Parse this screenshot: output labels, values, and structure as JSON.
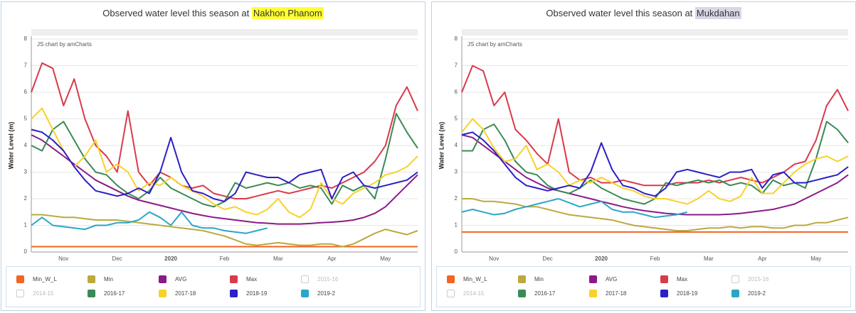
{
  "chart_data": [
    {
      "type": "line",
      "title": "Observed water level this season at",
      "station": "Nakhon Phanom",
      "station_highlight": "#ffff33",
      "y_label": "Water Level (m)",
      "credit": "JS chart by amCharts",
      "categories": [
        null,
        null,
        null,
        "Nov",
        null,
        null,
        null,
        null,
        "Dec",
        null,
        null,
        null,
        null,
        "2020",
        null,
        null,
        null,
        null,
        "Feb",
        null,
        null,
        null,
        null,
        "Mar",
        null,
        null,
        null,
        null,
        "Apr",
        null,
        null,
        null,
        null,
        "May",
        null,
        null,
        null
      ],
      "ylim": [
        0,
        8
      ],
      "yticks": [
        0,
        1,
        2,
        3,
        4,
        5,
        6,
        7,
        8
      ],
      "grid": true,
      "series": [
        {
          "name": "Min_W_L",
          "color": "#f26522",
          "values": [
            0.2,
            0.2,
            0.2,
            0.2,
            0.2,
            0.2,
            0.2,
            0.2,
            0.2,
            0.2,
            0.2,
            0.2,
            0.2,
            0.2,
            0.2,
            0.2,
            0.2,
            0.2,
            0.2,
            0.2,
            0.2,
            0.2,
            0.2,
            0.2,
            0.2,
            0.2,
            0.2,
            0.2,
            0.2,
            0.2,
            0.2,
            0.2,
            0.2,
            0.2,
            0.2,
            0.2,
            0.2
          ]
        },
        {
          "name": "Min",
          "color": "#bca93f",
          "values": [
            1.4,
            1.4,
            1.35,
            1.3,
            1.3,
            1.25,
            1.2,
            1.2,
            1.2,
            1.15,
            1.1,
            1.05,
            1.0,
            0.95,
            0.9,
            0.85,
            0.8,
            0.7,
            0.6,
            0.45,
            0.3,
            0.25,
            0.3,
            0.35,
            0.3,
            0.25,
            0.25,
            0.3,
            0.3,
            0.2,
            0.3,
            0.5,
            0.7,
            0.85,
            0.75,
            0.65,
            0.8
          ]
        },
        {
          "name": "AVG",
          "color": "#8b1a89",
          "values": [
            4.4,
            4.2,
            3.9,
            3.6,
            3.3,
            3.0,
            2.7,
            2.5,
            2.3,
            2.1,
            1.95,
            1.85,
            1.75,
            1.65,
            1.55,
            1.45,
            1.37,
            1.3,
            1.25,
            1.2,
            1.15,
            1.1,
            1.08,
            1.05,
            1.05,
            1.05,
            1.07,
            1.1,
            1.12,
            1.15,
            1.2,
            1.3,
            1.45,
            1.7,
            2.1,
            2.5,
            2.9
          ]
        },
        {
          "name": "Max",
          "color": "#d93a4a",
          "values": [
            6.0,
            7.1,
            6.9,
            5.5,
            6.5,
            5.0,
            4.0,
            3.6,
            3.0,
            5.3,
            3.0,
            2.5,
            3.0,
            2.8,
            2.5,
            2.4,
            2.5,
            2.2,
            2.1,
            2.0,
            2.0,
            2.1,
            2.2,
            2.3,
            2.2,
            2.3,
            2.4,
            2.5,
            2.4,
            2.6,
            2.8,
            3.0,
            3.4,
            4.0,
            5.5,
            6.2,
            5.3
          ]
        },
        {
          "name": "2015-16",
          "color": "#cccccc",
          "hidden": true
        },
        {
          "name": "2014-15",
          "color": "#cccccc",
          "hidden": true
        },
        {
          "name": "2016-17",
          "color": "#3a8a55",
          "values": [
            4.0,
            3.8,
            4.6,
            4.9,
            4.2,
            3.5,
            3.0,
            2.9,
            2.5,
            2.2,
            2.0,
            2.3,
            2.8,
            2.4,
            2.2,
            2.0,
            1.8,
            1.7,
            1.9,
            2.6,
            2.4,
            2.5,
            2.6,
            2.5,
            2.6,
            2.4,
            2.5,
            2.4,
            1.8,
            2.5,
            2.3,
            2.5,
            2.0,
            3.5,
            5.2,
            4.5,
            3.9
          ]
        },
        {
          "name": "2017-18",
          "color": "#f7d22a",
          "values": [
            5.0,
            5.4,
            4.6,
            3.8,
            3.2,
            3.6,
            4.2,
            3.0,
            3.3,
            3.0,
            2.3,
            2.6,
            2.5,
            2.8,
            2.5,
            2.3,
            2.1,
            1.8,
            1.6,
            1.7,
            1.5,
            1.4,
            1.6,
            2.0,
            1.5,
            1.3,
            1.6,
            2.6,
            2.0,
            1.8,
            2.2,
            2.4,
            2.6,
            2.9,
            3.0,
            3.2,
            3.6
          ]
        },
        {
          "name": "2018-19",
          "color": "#2b1fc7",
          "values": [
            4.6,
            4.5,
            4.2,
            3.8,
            3.2,
            2.7,
            2.3,
            2.2,
            2.1,
            2.2,
            2.4,
            2.2,
            3.0,
            4.3,
            3.0,
            2.3,
            2.2,
            2.0,
            1.9,
            2.2,
            3.0,
            2.9,
            2.8,
            2.8,
            2.6,
            2.9,
            3.0,
            3.1,
            2.0,
            2.8,
            3.0,
            2.5,
            2.4,
            2.5,
            2.6,
            2.7,
            3.0
          ]
        },
        {
          "name": "2019-2",
          "color": "#2aa6c7",
          "values": [
            1.0,
            1.3,
            1.0,
            0.95,
            0.9,
            0.85,
            1.0,
            1.0,
            1.1,
            1.1,
            1.2,
            1.5,
            1.3,
            1.0,
            1.5,
            1.0,
            0.9,
            0.9,
            0.8,
            0.75,
            0.7,
            0.8,
            0.9,
            null,
            null,
            null,
            null,
            null,
            null,
            null,
            null,
            null,
            null,
            null,
            null,
            null,
            null
          ]
        }
      ]
    },
    {
      "type": "line",
      "title": "Observed water level this season at",
      "station": "Mukdahan",
      "station_highlight": "#d9d6e6",
      "y_label": "Water Level (m)",
      "credit": "JS chart by amCharts",
      "categories": [
        null,
        null,
        null,
        "Nov",
        null,
        null,
        null,
        null,
        "Dec",
        null,
        null,
        null,
        null,
        "2020",
        null,
        null,
        null,
        null,
        "Feb",
        null,
        null,
        null,
        null,
        "Mar",
        null,
        null,
        null,
        null,
        "Apr",
        null,
        null,
        null,
        null,
        "May",
        null,
        null,
        null
      ],
      "ylim": [
        0,
        8
      ],
      "yticks": [
        0,
        1,
        2,
        3,
        4,
        5,
        6,
        7,
        8
      ],
      "grid": true,
      "series": [
        {
          "name": "Min_W_L",
          "color": "#f26522",
          "values": [
            0.75,
            0.75,
            0.75,
            0.75,
            0.75,
            0.75,
            0.75,
            0.75,
            0.75,
            0.75,
            0.75,
            0.75,
            0.75,
            0.75,
            0.75,
            0.75,
            0.75,
            0.75,
            0.75,
            0.75,
            0.75,
            0.75,
            0.75,
            0.75,
            0.75,
            0.75,
            0.75,
            0.75,
            0.75,
            0.75,
            0.75,
            0.75,
            0.75,
            0.75,
            0.75,
            0.75,
            0.75
          ]
        },
        {
          "name": "Min",
          "color": "#bca93f",
          "values": [
            2.0,
            2.0,
            1.9,
            1.9,
            1.85,
            1.8,
            1.7,
            1.7,
            1.6,
            1.5,
            1.4,
            1.35,
            1.3,
            1.25,
            1.2,
            1.1,
            1.0,
            0.95,
            0.9,
            0.85,
            0.8,
            0.8,
            0.85,
            0.9,
            0.9,
            0.95,
            0.9,
            0.95,
            0.95,
            0.9,
            0.9,
            1.0,
            1.0,
            1.1,
            1.1,
            1.2,
            1.3
          ]
        },
        {
          "name": "AVG",
          "color": "#8b1a89",
          "values": [
            4.4,
            4.3,
            4.0,
            3.7,
            3.4,
            3.1,
            2.8,
            2.6,
            2.4,
            2.3,
            2.2,
            2.1,
            2.0,
            1.9,
            1.8,
            1.7,
            1.62,
            1.55,
            1.5,
            1.45,
            1.42,
            1.4,
            1.4,
            1.4,
            1.4,
            1.42,
            1.45,
            1.5,
            1.55,
            1.6,
            1.7,
            1.8,
            2.0,
            2.2,
            2.4,
            2.6,
            2.9
          ]
        },
        {
          "name": "Max",
          "color": "#d93a4a",
          "values": [
            6.0,
            7.0,
            6.8,
            5.5,
            6.0,
            4.6,
            4.2,
            3.7,
            3.3,
            5.0,
            3.0,
            2.7,
            2.8,
            2.6,
            2.6,
            2.7,
            2.6,
            2.5,
            2.5,
            2.5,
            2.6,
            2.6,
            2.6,
            2.7,
            2.6,
            2.7,
            2.8,
            2.7,
            2.6,
            2.8,
            3.0,
            3.3,
            3.4,
            4.2,
            5.5,
            6.1,
            5.3
          ]
        },
        {
          "name": "2015-16",
          "color": "#cccccc",
          "hidden": true
        },
        {
          "name": "2014-15",
          "color": "#cccccc",
          "hidden": true
        },
        {
          "name": "2016-17",
          "color": "#3a8a55",
          "values": [
            3.8,
            3.8,
            4.6,
            4.8,
            4.2,
            3.4,
            3.0,
            2.9,
            2.5,
            2.3,
            2.2,
            2.4,
            2.7,
            2.4,
            2.2,
            2.0,
            1.9,
            1.8,
            2.0,
            2.6,
            2.5,
            2.6,
            2.7,
            2.6,
            2.7,
            2.5,
            2.6,
            2.5,
            2.2,
            2.7,
            2.5,
            2.6,
            2.4,
            3.5,
            4.9,
            4.6,
            4.1
          ]
        },
        {
          "name": "2017-18",
          "color": "#f7d22a",
          "values": [
            4.5,
            5.0,
            4.6,
            3.9,
            3.4,
            3.5,
            4.0,
            3.1,
            3.3,
            3.0,
            2.5,
            2.7,
            2.6,
            2.8,
            2.6,
            2.4,
            2.3,
            2.1,
            2.0,
            2.0,
            1.9,
            1.8,
            2.0,
            2.3,
            2.0,
            1.9,
            2.1,
            2.8,
            2.2,
            2.2,
            2.6,
            3.0,
            3.3,
            3.5,
            3.6,
            3.4,
            3.6
          ]
        },
        {
          "name": "2018-19",
          "color": "#2b1fc7",
          "values": [
            4.4,
            4.5,
            4.2,
            3.8,
            3.3,
            2.8,
            2.5,
            2.4,
            2.3,
            2.4,
            2.5,
            2.4,
            3.0,
            4.1,
            3.1,
            2.5,
            2.4,
            2.2,
            2.1,
            2.4,
            3.0,
            3.1,
            3.0,
            2.9,
            2.8,
            3.0,
            3.0,
            3.1,
            2.4,
            2.9,
            3.0,
            2.6,
            2.6,
            2.7,
            2.8,
            2.9,
            3.2
          ]
        },
        {
          "name": "2019-2",
          "color": "#2aa6c7",
          "values": [
            1.5,
            1.6,
            1.5,
            1.4,
            1.45,
            1.6,
            1.7,
            1.8,
            1.9,
            2.0,
            1.85,
            1.7,
            1.8,
            1.9,
            1.6,
            1.5,
            1.5,
            1.4,
            1.3,
            1.35,
            1.4,
            1.5,
            null,
            null,
            null,
            null,
            null,
            null,
            null,
            null,
            null,
            null,
            null,
            null,
            null,
            null,
            null
          ]
        }
      ]
    }
  ]
}
